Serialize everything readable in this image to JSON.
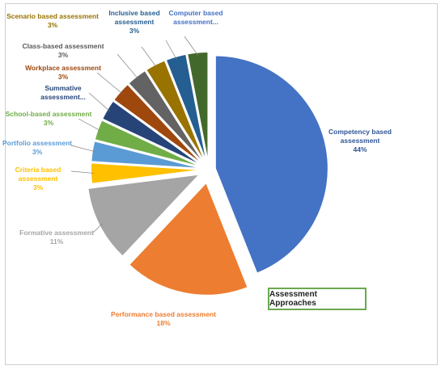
{
  "chart_data": {
    "type": "pie",
    "title": "Assessment Approaches",
    "slices": [
      {
        "label": [
          "Competency based",
          "assessment"
        ],
        "percent_label": "44%",
        "value": 44,
        "color": "#4472c4"
      },
      {
        "label": [
          "Performance based assessment"
        ],
        "percent_label": "18%",
        "value": 18,
        "color": "#ed7d31"
      },
      {
        "label": [
          "Formative assessment"
        ],
        "percent_label": "11%",
        "value": 11,
        "color": "#a5a5a5"
      },
      {
        "label": [
          "Criteria based",
          "assessment"
        ],
        "percent_label": "3%",
        "value": 3,
        "color": "#ffc000"
      },
      {
        "label": [
          "Portfolio assessment"
        ],
        "percent_label": "3%",
        "value": 3,
        "color": "#5b9bd5"
      },
      {
        "label": [
          "School-based assessment"
        ],
        "percent_label": "3%",
        "value": 3,
        "color": "#70ad47"
      },
      {
        "label": [
          "Summative",
          "assessment..."
        ],
        "percent_label": "",
        "value": 3,
        "color": "#264478"
      },
      {
        "label": [
          "Workplace assessment"
        ],
        "percent_label": "3%",
        "value": 3,
        "color": "#9e480e"
      },
      {
        "label": [
          "Class-based assessment"
        ],
        "percent_label": "3%",
        "value": 3,
        "color": "#636363"
      },
      {
        "label": [
          "Scenario based assessment"
        ],
        "percent_label": "3%",
        "value": 3,
        "color": "#997300"
      },
      {
        "label": [
          "Inclusive based",
          "assessment"
        ],
        "percent_label": "3%",
        "value": 3,
        "color": "#255e91"
      },
      {
        "label": [
          "Computer based",
          "assessment..."
        ],
        "percent_label": "",
        "value": 3,
        "color": "#43682b"
      }
    ]
  }
}
